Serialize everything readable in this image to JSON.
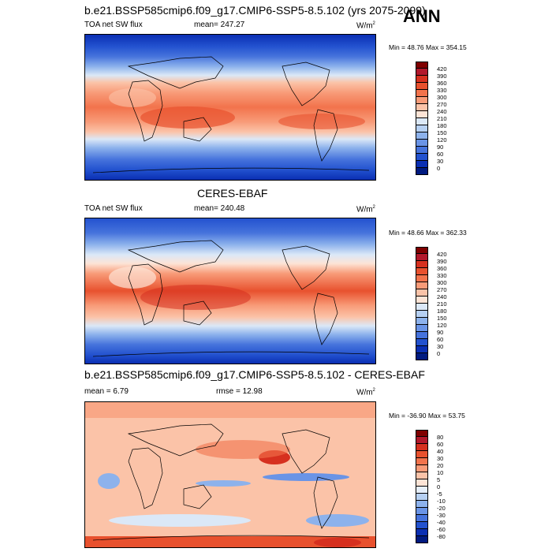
{
  "header": {
    "case_title": "b.e21.BSSP585cmip6.f09_g17.CMIP6-SSP5-8.5.102 (yrs 2075-2099)",
    "season": "ANN"
  },
  "panel1": {
    "variable": "TOA net SW flux",
    "mean_text": "mean= 247.27",
    "units": "W/m",
    "units_sup": "2",
    "minmax": "Min =  48.76 Max = 354.15",
    "levels": [
      "420",
      "390",
      "360",
      "330",
      "300",
      "270",
      "240",
      "210",
      "180",
      "150",
      "120",
      "90",
      "60",
      "30",
      "0"
    ]
  },
  "panel2": {
    "title": "CERES-EBAF",
    "variable": "TOA net SW flux",
    "mean_text": "mean= 240.48",
    "units": "W/m",
    "units_sup": "2",
    "minmax": "Min =  48.66 Max = 362.33",
    "levels": [
      "420",
      "390",
      "360",
      "330",
      "300",
      "270",
      "240",
      "210",
      "180",
      "150",
      "120",
      "90",
      "60",
      "30",
      "0"
    ]
  },
  "panel3": {
    "title": "b.e21.BSSP585cmip6.f09_g17.CMIP6-SSP5-8.5.102 - CERES-EBAF",
    "mean_text": "mean =   6.79",
    "rmse_text": "rmse =  12.98",
    "units": "W/m",
    "units_sup": "2",
    "minmax": "Min = -36.90 Max =  53.75",
    "levels": [
      "80",
      "60",
      "40",
      "30",
      "20",
      "10",
      "5",
      "0",
      "-5",
      "-10",
      "-20",
      "-30",
      "-40",
      "-60",
      "-80"
    ]
  },
  "colors": {
    "abs_scale": [
      "#7f0000",
      "#b2182b",
      "#d6301f",
      "#e8512e",
      "#f2734c",
      "#f89b78",
      "#fbc3a8",
      "#fde4d6",
      "#dbe8f7",
      "#b6d0f2",
      "#8db2ec",
      "#6a94e6",
      "#4673dc",
      "#2352cf",
      "#0a2fb3",
      "#001a80"
    ],
    "diff_scale": [
      "#7f0000",
      "#b2182b",
      "#d6301f",
      "#e8512e",
      "#f2734c",
      "#f89b78",
      "#fbc3a8",
      "#fde4d6",
      "#fdf2ec",
      "#e6effa",
      "#b6d0f2",
      "#8db2ec",
      "#6a94e6",
      "#4673dc",
      "#2352cf",
      "#001a80"
    ]
  }
}
